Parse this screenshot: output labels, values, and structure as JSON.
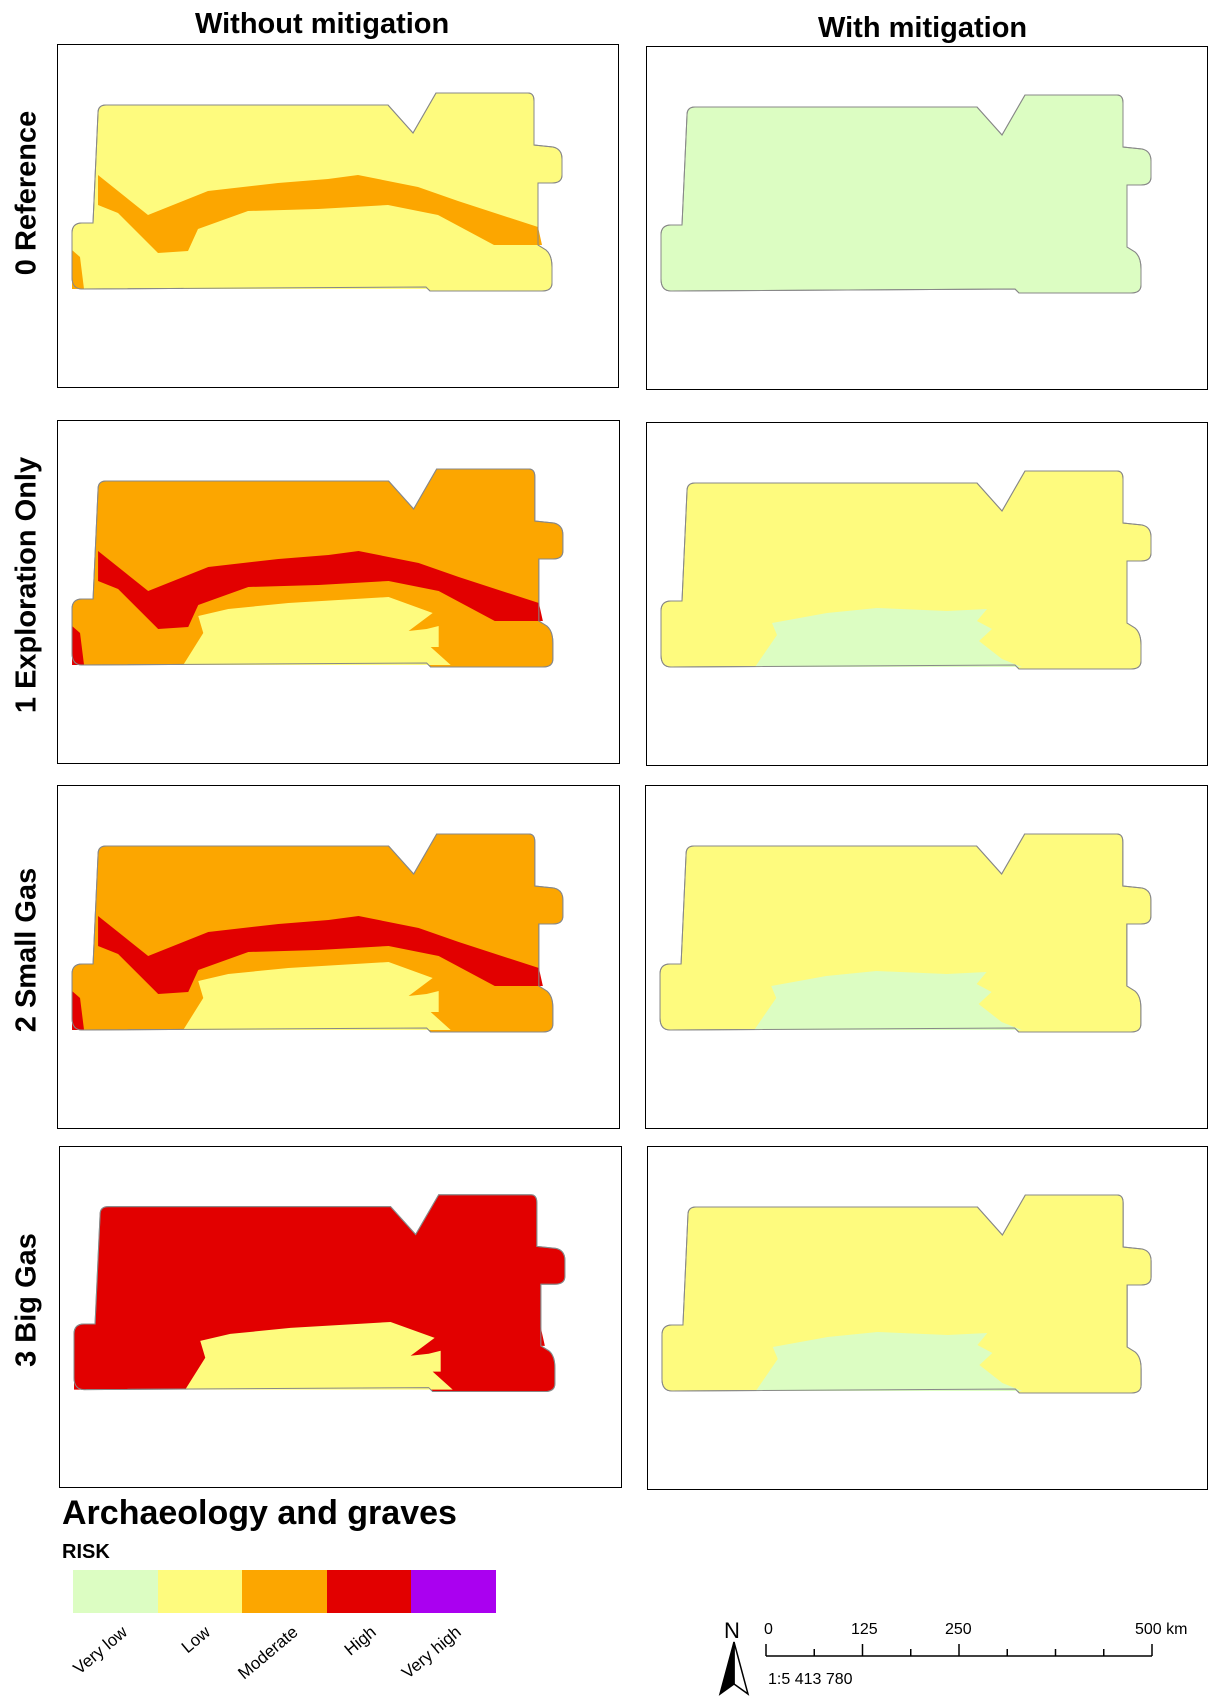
{
  "columns": [
    "Without mitigation",
    "With mitigation"
  ],
  "rows": [
    "0 Reference",
    "1 Exploration Only",
    "2 Small Gas",
    "3 Big Gas"
  ],
  "legend": {
    "title": "Archaeology and graves",
    "subtitle": "RISK",
    "categories": [
      {
        "label": "Very low",
        "color": "#dcfdc2"
      },
      {
        "label": "Low",
        "color": "#fefb7e"
      },
      {
        "label": "Moderate",
        "color": "#fca600"
      },
      {
        "label": "High",
        "color": "#e20000"
      },
      {
        "label": "Very high",
        "color": "#aa00f0"
      }
    ]
  },
  "maps": {
    "without": [
      {
        "base": "Low",
        "band": "Moderate",
        "lower": "Low",
        "edge": "Moderate"
      },
      {
        "base": "Moderate",
        "band": "High",
        "lower": "Low",
        "edge": "High"
      },
      {
        "base": "Moderate",
        "band": "High",
        "lower": "Low",
        "edge": "High"
      },
      {
        "base": "High",
        "band": "High",
        "lower": "Low",
        "edge": "High"
      }
    ],
    "with": [
      {
        "base": "Very low",
        "lower": "Very low"
      },
      {
        "base": "Low",
        "lower": "Very low"
      },
      {
        "base": "Low",
        "lower": "Very low"
      },
      {
        "base": "Low",
        "lower": "Very low"
      }
    ]
  },
  "north_label": "N",
  "scale": {
    "ticks": [
      {
        "value": 0,
        "label": "0"
      },
      {
        "value": 125,
        "label": "125"
      },
      {
        "value": 250,
        "label": "250"
      },
      {
        "value": 500,
        "label": "500 km"
      }
    ],
    "minor_step": 62.5,
    "max": 500,
    "ratio": "1:5 413 780"
  }
}
